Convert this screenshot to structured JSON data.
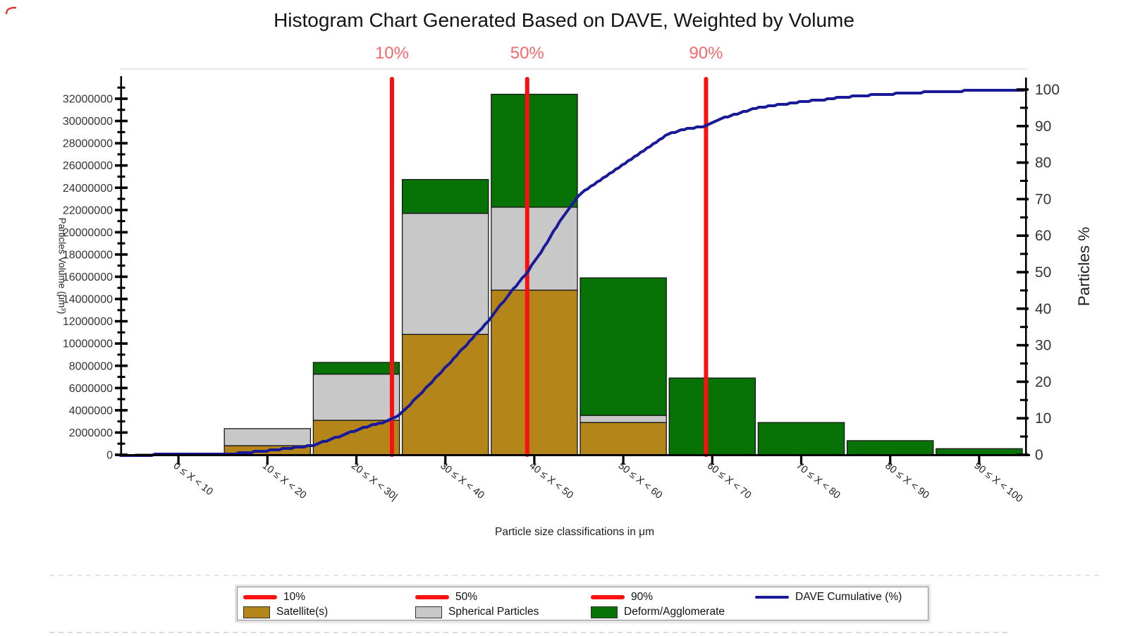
{
  "title": "Histogram Chart Generated Based on DAVE, Weighted by Volume",
  "axes": {
    "left": {
      "title": "Particles Volume (μm³)",
      "tick_labels": [
        "0",
        "2000000",
        "4000000",
        "6000000",
        "8000000",
        "10000000",
        "12000000",
        "14000000",
        "16000000",
        "18000000",
        "20000000",
        "22000000",
        "24000000",
        "26000000",
        "28000000",
        "30000000",
        "32000000"
      ]
    },
    "right": {
      "title": "Particles %",
      "tick_labels": [
        "0",
        "10",
        "20",
        "30",
        "40",
        "50",
        "60",
        "70",
        "80",
        "90",
        "100"
      ]
    },
    "bottom": {
      "title": "Particle size classifications in μm",
      "tick_labels": [
        "0 ≤ X < 10",
        "10 ≤ X < 20",
        "20 ≤ X < 30|",
        "30 ≤ X < 40",
        "40 ≤ X < 50",
        "50 ≤ X < 60",
        "60 ≤ X < 70",
        "70 ≤ X < 80",
        "80 ≤ X < 90",
        "90 ≤ X < 100"
      ]
    }
  },
  "legend": {
    "rows": [
      [
        {
          "type": "line",
          "color": "#F81110",
          "thickness": 6,
          "label": "10%"
        },
        {
          "type": "line",
          "color": "#F81110",
          "thickness": 6,
          "label": "50%"
        },
        {
          "type": "line",
          "color": "#F81110",
          "thickness": 6,
          "label": "90%"
        },
        {
          "type": "line",
          "color": "#1A1A99",
          "thickness": 4,
          "label": "DAVE Cumulative (%)"
        }
      ],
      [
        {
          "type": "swatch",
          "color": "#B4861A",
          "label": "Satellite(s)"
        },
        {
          "type": "swatch",
          "color": "#C8C8C8",
          "label": "Spherical Particles"
        },
        {
          "type": "swatch",
          "color": "#077307",
          "label": "Deform/Agglomerate"
        }
      ]
    ]
  },
  "colors": {
    "bar_border": "#161616",
    "axis": "#000000",
    "tick_text": "#333333",
    "percentile_line": "#F81110",
    "percentile_label": "#F5686C",
    "cumulative_line": "#1A1A99",
    "background": "#FFFFFF"
  },
  "chart_data": {
    "type": "bar",
    "stacked": true,
    "title": "Histogram Chart Generated Based on DAVE, Weighted by Volume",
    "xlabel": "Particle size classifications in μm",
    "ylabel": "Particles Volume (μm³)",
    "y2label": "Particles %",
    "grid": false,
    "legend_position": "bottom",
    "xlim_um": [
      0,
      100
    ],
    "ylim": [
      0,
      33900000
    ],
    "y2lim": [
      0,
      103
    ],
    "categories": [
      "0 ≤ X < 10",
      "10 ≤ X < 20",
      "20 ≤ X < 30",
      "30 ≤ X < 40",
      "40 ≤ X < 50",
      "50 ≤ X < 60",
      "60 ≤ X < 70",
      "70 ≤ X < 80",
      "80 ≤ X < 90",
      "90 ≤ X < 100"
    ],
    "series": [
      {
        "name": "Satellite(s)",
        "color": "#B4861A",
        "values": [
          0,
          820000,
          3100000,
          10820000,
          14800000,
          2900000,
          0,
          0,
          0,
          0
        ]
      },
      {
        "name": "Spherical Particles",
        "color": "#C8C8C8",
        "values": [
          50000,
          1530000,
          4150000,
          10880000,
          7450000,
          640000,
          0,
          0,
          0,
          0
        ]
      },
      {
        "name": "Deform/Agglomerate",
        "color": "#077307",
        "values": [
          0,
          0,
          1050000,
          3040000,
          10150000,
          12360000,
          6900000,
          2900000,
          1270000,
          550000
        ]
      }
    ],
    "line_series": {
      "name": "DAVE Cumulative (%)",
      "color": "#1A1A99",
      "axis": "right",
      "points": [
        [
          -1.5,
          0
        ],
        [
          2,
          0
        ],
        [
          5,
          0.05
        ],
        [
          8,
          0.1
        ],
        [
          10,
          0.15
        ],
        [
          12,
          0.45
        ],
        [
          14,
          0.9
        ],
        [
          16,
          1.4
        ],
        [
          18,
          1.95
        ],
        [
          20,
          2.5
        ],
        [
          22,
          4.1
        ],
        [
          24,
          5.9
        ],
        [
          26,
          7.6
        ],
        [
          28,
          8.9
        ],
        [
          29,
          10
        ],
        [
          30,
          11.2
        ],
        [
          32,
          16.2
        ],
        [
          34,
          21.3
        ],
        [
          36,
          26.5
        ],
        [
          38,
          31.8
        ],
        [
          40,
          37.1
        ],
        [
          42,
          43.5
        ],
        [
          44.2,
          50
        ],
        [
          46,
          56.5
        ],
        [
          48,
          64.5
        ],
        [
          50,
          71.1
        ],
        [
          52,
          74.5
        ],
        [
          54,
          77.8
        ],
        [
          56,
          81.1
        ],
        [
          58,
          84.4
        ],
        [
          60,
          87.7
        ],
        [
          62,
          89.2
        ],
        [
          64.3,
          90
        ],
        [
          66,
          92.1
        ],
        [
          68,
          93.5
        ],
        [
          70,
          95
        ],
        [
          72,
          95.7
        ],
        [
          75,
          96.6
        ],
        [
          78,
          97.4
        ],
        [
          80,
          98
        ],
        [
          83,
          98.5
        ],
        [
          86,
          98.9
        ],
        [
          90,
          99.4
        ],
        [
          93,
          99.6
        ],
        [
          96,
          99.8
        ],
        [
          100,
          100
        ]
      ]
    },
    "percentile_lines": [
      {
        "label": "10%",
        "x_um": 29.0
      },
      {
        "label": "50%",
        "x_um": 44.2
      },
      {
        "label": "90%",
        "x_um": 64.3
      }
    ]
  }
}
